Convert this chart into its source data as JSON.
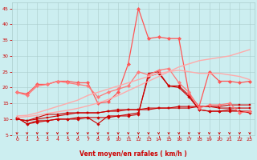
{
  "x": [
    0,
    1,
    2,
    3,
    4,
    5,
    6,
    7,
    8,
    9,
    10,
    11,
    12,
    13,
    14,
    15,
    16,
    17,
    18,
    19,
    20,
    21,
    22,
    23
  ],
  "series": [
    {
      "name": "line_dark_red_1",
      "color": "#cc0000",
      "linewidth": 0.8,
      "marker": "D",
      "markersize": 1.8,
      "y": [
        10.5,
        8.5,
        9.5,
        9.5,
        10.0,
        10.0,
        10.0,
        10.5,
        10.5,
        10.5,
        11.0,
        11.0,
        11.5,
        24.5,
        25.0,
        20.5,
        20.5,
        17.5,
        13.0,
        12.5,
        12.5,
        13.0,
        12.5,
        12.5
      ]
    },
    {
      "name": "line_dark_red_2",
      "color": "#cc0000",
      "linewidth": 0.8,
      "marker": "D",
      "markersize": 1.8,
      "y": [
        10.5,
        8.5,
        9.0,
        9.5,
        10.0,
        10.0,
        10.5,
        10.5,
        8.5,
        11.0,
        11.0,
        11.5,
        12.0,
        23.5,
        24.5,
        20.5,
        20.0,
        17.0,
        13.0,
        12.5,
        12.5,
        12.5,
        12.5,
        12.0
      ]
    },
    {
      "name": "line_dark_red_3",
      "color": "#cc0000",
      "linewidth": 0.8,
      "marker": "s",
      "markersize": 1.8,
      "y": [
        10.0,
        9.5,
        10.5,
        11.5,
        11.5,
        12.0,
        12.0,
        12.0,
        12.0,
        12.5,
        13.0,
        13.0,
        13.0,
        13.0,
        13.5,
        13.5,
        13.5,
        13.5,
        14.0,
        14.0,
        14.0,
        14.5,
        14.5,
        14.5
      ]
    },
    {
      "name": "line_dark_red_flat",
      "color": "#cc0000",
      "linewidth": 0.8,
      "marker": "s",
      "markersize": 1.8,
      "y": [
        10.0,
        9.5,
        10.0,
        10.5,
        11.0,
        11.5,
        12.0,
        12.0,
        12.0,
        12.5,
        12.5,
        13.0,
        13.0,
        13.5,
        13.5,
        13.5,
        14.0,
        14.0,
        14.0,
        14.0,
        13.5,
        13.5,
        13.5,
        13.5
      ]
    },
    {
      "name": "line_medium_red_peaked",
      "color": "#ff5555",
      "linewidth": 0.9,
      "marker": "D",
      "markersize": 2.2,
      "y": [
        18.5,
        18.0,
        21.0,
        21.0,
        22.0,
        22.0,
        21.5,
        21.5,
        15.0,
        15.5,
        18.5,
        27.5,
        45.0,
        35.5,
        36.0,
        35.5,
        35.5,
        18.0,
        14.0,
        25.0,
        22.0,
        22.0,
        21.5,
        22.0
      ]
    },
    {
      "name": "line_medium_red_lower",
      "color": "#ff7777",
      "linewidth": 0.9,
      "marker": "D",
      "markersize": 2.2,
      "y": [
        18.5,
        17.5,
        20.5,
        21.0,
        22.0,
        21.5,
        21.0,
        20.5,
        17.0,
        18.5,
        19.5,
        20.5,
        25.0,
        24.0,
        25.5,
        26.0,
        21.5,
        18.5,
        13.5,
        14.5,
        14.5,
        15.0,
        12.0,
        12.5
      ]
    },
    {
      "name": "line_smooth_rising",
      "color": "#ffaaaa",
      "linewidth": 1.0,
      "marker": null,
      "markersize": 0,
      "y": [
        10.5,
        10.8,
        11.2,
        11.8,
        12.3,
        12.8,
        13.4,
        14.2,
        15.1,
        16.2,
        17.5,
        19.0,
        20.5,
        22.0,
        23.5,
        25.0,
        26.5,
        27.5,
        28.5,
        29.0,
        29.5,
        30.0,
        31.0,
        32.0
      ]
    },
    {
      "name": "line_smooth_hump",
      "color": "#ffaaaa",
      "linewidth": 1.0,
      "marker": null,
      "markersize": 0,
      "y": [
        11.0,
        11.2,
        12.0,
        13.0,
        14.0,
        15.0,
        16.0,
        17.5,
        18.5,
        19.5,
        20.5,
        21.5,
        22.5,
        23.5,
        24.5,
        25.0,
        25.5,
        25.0,
        24.5,
        24.5,
        24.5,
        24.0,
        23.5,
        22.5
      ]
    }
  ],
  "xlabel": "Vent moyen/en rafales ( km/h )",
  "xlim": [
    -0.5,
    23.5
  ],
  "ylim": [
    5,
    47
  ],
  "yticks": [
    5,
    10,
    15,
    20,
    25,
    30,
    35,
    40,
    45
  ],
  "xticks": [
    0,
    1,
    2,
    3,
    4,
    5,
    6,
    7,
    8,
    9,
    10,
    11,
    12,
    13,
    14,
    15,
    16,
    17,
    18,
    19,
    20,
    21,
    22,
    23
  ],
  "background_color": "#cceef0",
  "grid_color": "#aacccc",
  "axis_color": "#cc0000",
  "arrow_color": "#cc0000",
  "xlabel_color": "#cc0000"
}
